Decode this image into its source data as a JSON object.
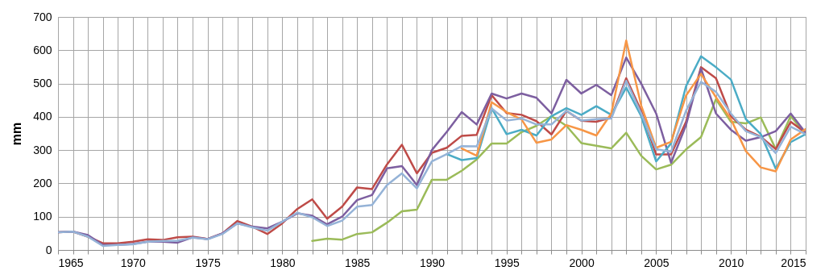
{
  "chart_data": {
    "type": "line",
    "ylabel": "mm",
    "x": [
      1965,
      1966,
      1967,
      1968,
      1969,
      1970,
      1971,
      1972,
      1973,
      1974,
      1975,
      1976,
      1977,
      1978,
      1979,
      1980,
      1981,
      1982,
      1983,
      1984,
      1985,
      1986,
      1987,
      1988,
      1989,
      1990,
      1991,
      1992,
      1993,
      1994,
      1995,
      1996,
      1997,
      1998,
      1999,
      2000,
      2001,
      2002,
      2003,
      2004,
      2005,
      2006,
      2007,
      2008,
      2009,
      2010,
      2011,
      2012,
      2013,
      2014,
      2015
    ],
    "series": [
      {
        "color": "#9bbb59",
        "values": [
          null,
          null,
          null,
          null,
          null,
          null,
          null,
          null,
          null,
          null,
          null,
          null,
          null,
          null,
          null,
          null,
          null,
          27,
          34,
          31,
          48,
          53,
          82,
          116,
          121,
          211,
          211,
          238,
          272,
          320,
          320,
          354,
          373,
          402,
          373,
          321,
          313,
          305,
          352,
          283,
          242,
          256,
          302,
          339,
          453,
          385,
          380,
          398,
          303,
          402,
          346
        ]
      },
      {
        "color": "#be4b48",
        "values": [
          53,
          55,
          40,
          20,
          20,
          25,
          32,
          30,
          38,
          40,
          33,
          50,
          87,
          70,
          48,
          80,
          123,
          152,
          94,
          130,
          188,
          183,
          257,
          316,
          230,
          292,
          307,
          343,
          346,
          465,
          411,
          406,
          387,
          347,
          418,
          388,
          385,
          398,
          516,
          418,
          287,
          287,
          385,
          549,
          516,
          402,
          361,
          340,
          303,
          385,
          352
        ]
      },
      {
        "color": "#7d5fa0",
        "values": [
          53,
          55,
          45,
          15,
          15,
          18,
          25,
          25,
          22,
          38,
          33,
          50,
          80,
          70,
          65,
          85,
          110,
          103,
          77,
          100,
          150,
          165,
          245,
          252,
          195,
          300,
          355,
          414,
          377,
          470,
          455,
          470,
          457,
          410,
          511,
          470,
          496,
          465,
          578,
          500,
          410,
          262,
          375,
          545,
          410,
          361,
          328,
          339,
          357,
          410,
          352
        ]
      },
      {
        "color": "#4bacc6",
        "values": [
          null,
          null,
          null,
          null,
          null,
          null,
          null,
          null,
          null,
          null,
          null,
          null,
          null,
          null,
          null,
          null,
          null,
          null,
          null,
          null,
          null,
          null,
          null,
          null,
          null,
          null,
          288,
          270,
          276,
          426,
          348,
          361,
          344,
          402,
          426,
          406,
          432,
          406,
          488,
          402,
          266,
          320,
          492,
          582,
          549,
          512,
          393,
          348,
          244,
          324,
          348
        ]
      },
      {
        "color": "#f79646",
        "values": [
          null,
          null,
          null,
          null,
          null,
          null,
          null,
          null,
          null,
          null,
          null,
          null,
          null,
          null,
          null,
          null,
          null,
          null,
          null,
          null,
          null,
          null,
          null,
          null,
          null,
          null,
          null,
          305,
          283,
          444,
          414,
          392,
          322,
          332,
          375,
          361,
          344,
          410,
          629,
          434,
          307,
          325,
          464,
          529,
          459,
          393,
          297,
          248,
          236,
          332,
          363
        ]
      },
      {
        "color": "#95b3d7",
        "values": [
          53,
          55,
          40,
          12,
          15,
          17,
          25,
          27,
          28,
          37,
          32,
          48,
          80,
          68,
          58,
          85,
          112,
          98,
          72,
          88,
          130,
          135,
          195,
          230,
          185,
          266,
          288,
          312,
          311,
          425,
          389,
          395,
          377,
          377,
          418,
          389,
          393,
          395,
          508,
          410,
          303,
          295,
          418,
          505,
          475,
          410,
          357,
          339,
          291,
          370,
          348
        ]
      }
    ],
    "xlim": [
      1965,
      2015
    ],
    "xticks": [
      1965,
      {
        "value": 1966,
        "label": null
      },
      {
        "value": 1967,
        "label": null
      },
      {
        "value": 1968,
        "label": null
      },
      {
        "value": 1969,
        "label": null
      },
      1970,
      {
        "value": 1971,
        "label": null
      },
      {
        "value": 1972,
        "label": null
      },
      {
        "value": 1973,
        "label": null
      },
      {
        "value": 1974,
        "label": null
      },
      1975,
      {
        "value": 1976,
        "label": null
      },
      {
        "value": 1977,
        "label": null
      },
      {
        "value": 1978,
        "label": null
      },
      {
        "value": 1979,
        "label": null
      },
      1980,
      {
        "value": 1981,
        "label": null
      },
      {
        "value": 1982,
        "label": null
      },
      {
        "value": 1983,
        "label": null
      },
      {
        "value": 1984,
        "label": null
      },
      1985,
      {
        "value": 1986,
        "label": null
      },
      {
        "value": 1987,
        "label": null
      },
      {
        "value": 1988,
        "label": null
      },
      {
        "value": 1989,
        "label": null
      },
      1990,
      {
        "value": 1991,
        "label": null
      },
      {
        "value": 1992,
        "label": null
      },
      {
        "value": 1993,
        "label": null
      },
      {
        "value": 1994,
        "label": null
      },
      1995,
      {
        "value": 1996,
        "label": null
      },
      {
        "value": 1997,
        "label": null
      },
      {
        "value": 1998,
        "label": null
      },
      {
        "value": 1999,
        "label": null
      },
      2000,
      {
        "value": 2001,
        "label": null
      },
      {
        "value": 2002,
        "label": null
      },
      {
        "value": 2003,
        "label": null
      },
      {
        "value": 2004,
        "label": null
      },
      2005,
      {
        "value": 2006,
        "label": null
      },
      {
        "value": 2007,
        "label": null
      },
      {
        "value": 2008,
        "label": null
      },
      {
        "value": 2009,
        "label": null
      },
      2010,
      {
        "value": 2011,
        "label": null
      },
      {
        "value": 2012,
        "label": null
      },
      {
        "value": 2013,
        "label": null
      },
      {
        "value": 2014,
        "label": null
      },
      2015
    ],
    "ylim": [
      0,
      700
    ],
    "yticks": [
      0,
      100,
      200,
      300,
      400,
      500,
      600,
      700
    ],
    "grid": true
  }
}
